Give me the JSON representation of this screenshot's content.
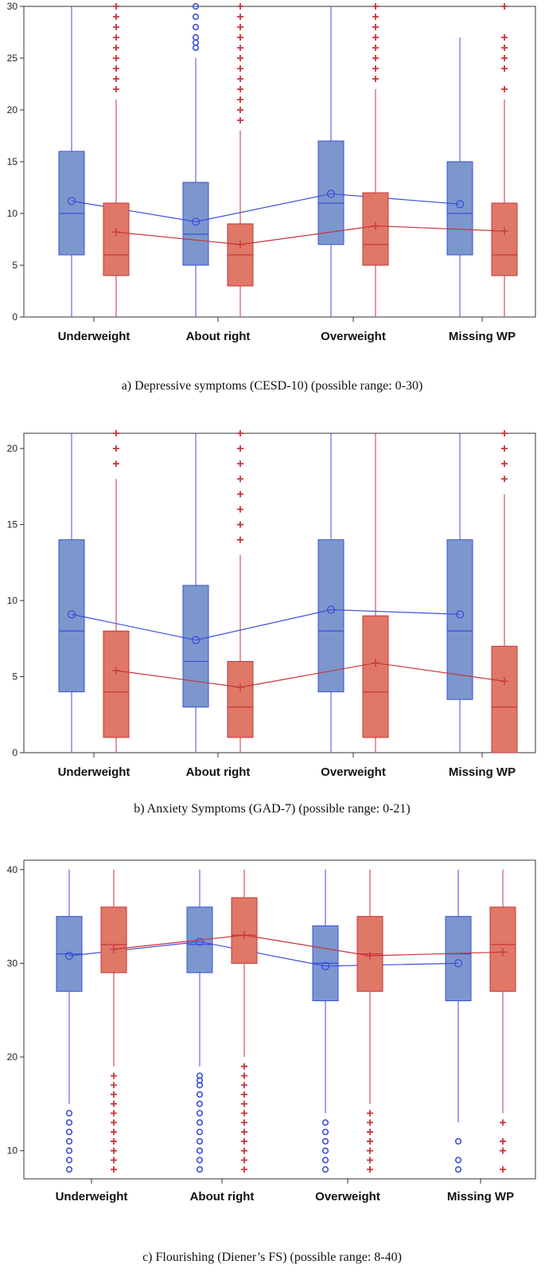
{
  "colors": {
    "blue": "#3b4fd8",
    "blue_fill": "#7c97cd",
    "red": "#c9333a",
    "red_fill": "#df7867",
    "axis": "#333333"
  },
  "chart_data": [
    {
      "type": "box",
      "caption": "a) Depressive symptoms (CESD-10) (possible range: 0-30)",
      "ylim": [
        0,
        30
      ],
      "yticks": [
        0,
        5,
        10,
        15,
        20,
        25,
        30
      ],
      "categories": [
        "Underweight",
        "About right",
        "Overweight",
        "Missing WP"
      ],
      "series": [
        {
          "color": "blue",
          "marker": "circle",
          "boxes": [
            {
              "min": 0,
              "q1": 6,
              "median": 10,
              "q3": 16,
              "max": 30,
              "mean": 11.2,
              "outliers": []
            },
            {
              "min": 0,
              "q1": 5,
              "median": 8,
              "q3": 13,
              "max": 25,
              "mean": 9.2,
              "outliers": [
                26,
                26.5,
                27,
                28,
                29,
                30
              ]
            },
            {
              "min": 0,
              "q1": 7,
              "median": 11,
              "q3": 17,
              "max": 30,
              "mean": 11.9,
              "outliers": []
            },
            {
              "min": 0,
              "q1": 6,
              "median": 10,
              "q3": 15,
              "max": 27,
              "mean": 10.9,
              "outliers": []
            }
          ]
        },
        {
          "color": "red",
          "marker": "plus",
          "boxes": [
            {
              "min": 0,
              "q1": 4,
              "median": 6,
              "q3": 11,
              "max": 21,
              "mean": 8.2,
              "outliers": [
                22,
                23,
                24,
                25,
                26,
                27,
                28,
                29,
                30
              ]
            },
            {
              "min": 0,
              "q1": 3,
              "median": 6,
              "q3": 9,
              "max": 18,
              "mean": 7,
              "outliers": [
                19,
                20,
                21,
                22,
                23,
                24,
                25,
                26,
                27,
                28,
                29,
                30
              ]
            },
            {
              "min": 0,
              "q1": 5,
              "median": 7,
              "q3": 12,
              "max": 22,
              "mean": 8.8,
              "outliers": [
                23,
                24,
                25,
                26,
                27,
                28,
                29,
                30
              ]
            },
            {
              "min": 0,
              "q1": 4,
              "median": 6,
              "q3": 11,
              "max": 21,
              "mean": 8.3,
              "outliers": [
                22,
                24,
                25,
                26,
                27,
                30
              ]
            }
          ]
        }
      ]
    },
    {
      "type": "box",
      "caption": "b) Anxiety Symptoms (GAD-7) (possible range: 0-21)",
      "ylim": [
        0,
        21
      ],
      "yticks": [
        0,
        5,
        10,
        15,
        20
      ],
      "categories": [
        "Underweight",
        "About right",
        "Overweight",
        "Missing WP"
      ],
      "series": [
        {
          "color": "blue",
          "marker": "circle",
          "boxes": [
            {
              "min": 0,
              "q1": 4,
              "median": 8,
              "q3": 14,
              "max": 21,
              "mean": 9.1,
              "outliers": []
            },
            {
              "min": 0,
              "q1": 3,
              "median": 6,
              "q3": 11,
              "max": 21,
              "mean": 7.4,
              "outliers": []
            },
            {
              "min": 0,
              "q1": 4,
              "median": 8,
              "q3": 14,
              "max": 21,
              "mean": 9.4,
              "outliers": []
            },
            {
              "min": 0,
              "q1": 3.5,
              "median": 8,
              "q3": 14,
              "max": 21,
              "mean": 9.1,
              "outliers": []
            }
          ]
        },
        {
          "color": "red",
          "marker": "plus",
          "boxes": [
            {
              "min": 0,
              "q1": 1,
              "median": 4,
              "q3": 8,
              "max": 18,
              "mean": 5.4,
              "outliers": [
                19,
                20,
                21
              ]
            },
            {
              "min": 0,
              "q1": 1,
              "median": 3,
              "q3": 6,
              "max": 13,
              "mean": 4.3,
              "outliers": [
                14,
                15,
                16,
                17,
                18,
                19,
                20,
                21
              ]
            },
            {
              "min": 0,
              "q1": 1,
              "median": 4,
              "q3": 9,
              "max": 21,
              "mean": 5.9,
              "outliers": []
            },
            {
              "min": 0,
              "q1": 0,
              "median": 3,
              "q3": 7,
              "max": 17,
              "mean": 4.7,
              "outliers": [
                18,
                19,
                20,
                21
              ]
            }
          ]
        }
      ]
    },
    {
      "type": "box",
      "caption": "c) Flourishing (Diener’s FS) (possible range: 8-40)",
      "ylim": [
        7,
        41
      ],
      "yticks": [
        10,
        20,
        30,
        40
      ],
      "categories": [
        "Underweight",
        "About right",
        "Overweight",
        "Missing WP"
      ],
      "series": [
        {
          "color": "blue",
          "marker": "circle",
          "boxes": [
            {
              "min": 15,
              "q1": 27,
              "median": 31,
              "q3": 35,
              "max": 40,
              "mean": 30.8,
              "outliers": [
                8,
                9,
                10,
                11,
                12,
                13,
                14
              ]
            },
            {
              "min": 19,
              "q1": 29,
              "median": 32,
              "q3": 36,
              "max": 40,
              "mean": 32.3,
              "outliers": [
                8,
                9,
                10,
                11,
                12,
                13,
                14,
                15,
                16,
                17,
                17.5,
                18
              ]
            },
            {
              "min": 14,
              "q1": 26,
              "median": 30,
              "q3": 34,
              "max": 40,
              "mean": 29.7,
              "outliers": [
                8,
                9,
                10,
                11,
                12,
                13
              ]
            },
            {
              "min": 13,
              "q1": 26,
              "median": 31,
              "q3": 35,
              "max": 40,
              "mean": 30,
              "outliers": [
                8,
                9,
                11
              ]
            }
          ]
        },
        {
          "color": "red",
          "marker": "plus",
          "boxes": [
            {
              "min": 19,
              "q1": 29,
              "median": 32,
              "q3": 36,
              "max": 40,
              "mean": 31.5,
              "outliers": [
                8,
                9,
                10,
                11,
                12,
                13,
                14,
                15,
                16,
                17,
                18
              ]
            },
            {
              "min": 20,
              "q1": 30,
              "median": 33,
              "q3": 37,
              "max": 40,
              "mean": 33,
              "outliers": [
                8,
                9,
                10,
                11,
                12,
                13,
                14,
                15,
                16,
                17,
                18,
                19
              ]
            },
            {
              "min": 15,
              "q1": 27,
              "median": 31,
              "q3": 35,
              "max": 40,
              "mean": 30.8,
              "outliers": [
                8,
                9,
                10,
                11,
                12,
                13,
                14
              ]
            },
            {
              "min": 14,
              "q1": 27,
              "median": 32,
              "q3": 36,
              "max": 40,
              "mean": 31.2,
              "outliers": [
                8,
                10,
                11,
                13
              ]
            }
          ]
        }
      ]
    }
  ]
}
